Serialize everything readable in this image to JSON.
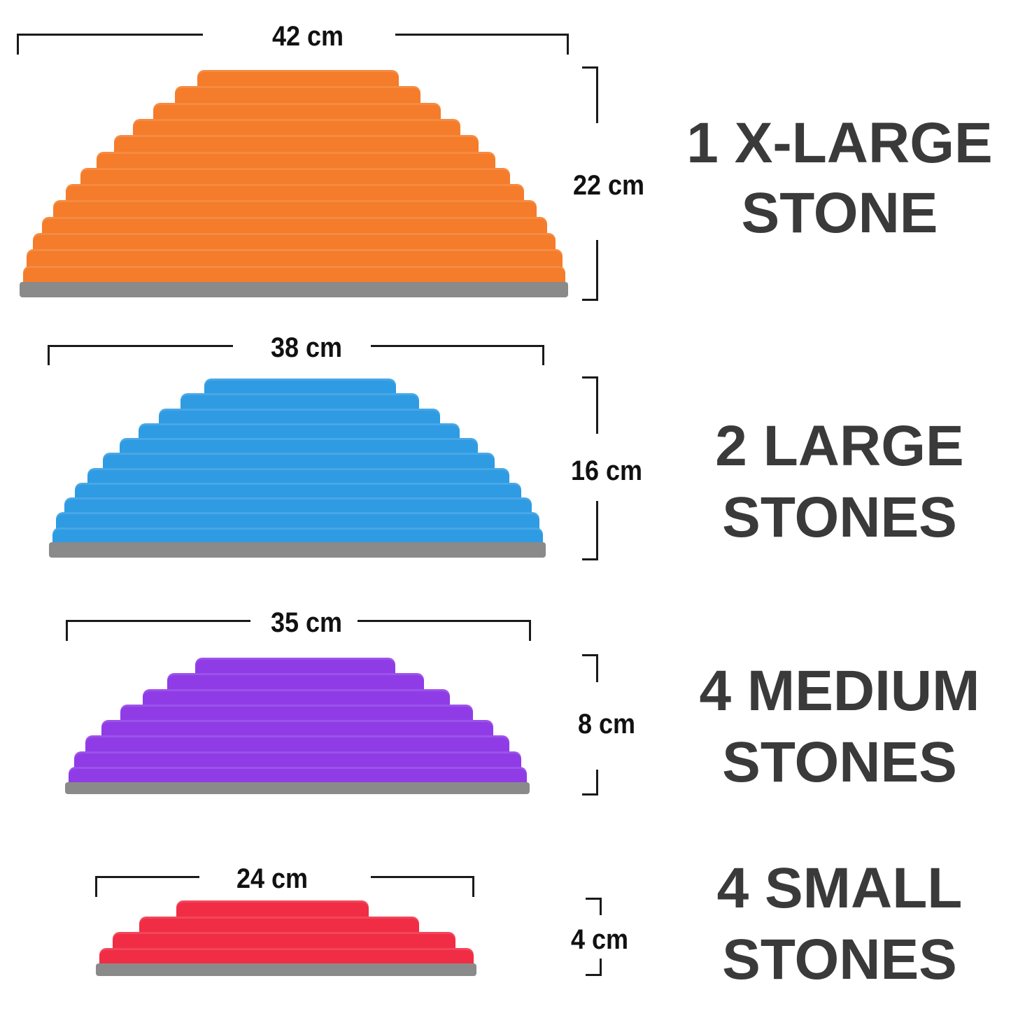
{
  "colors": {
    "base": "#8a8a8a",
    "text": "#3a3a3a",
    "dimension": "#111111"
  },
  "stones": [
    {
      "name": "x-large",
      "color": "#f47c2a",
      "width_label": "42 cm",
      "height_label": "22 cm",
      "title_line1": "1 X-LARGE",
      "title_line2": "STONE"
    },
    {
      "name": "large",
      "color": "#2f9be3",
      "width_label": "38 cm",
      "height_label": "16 cm",
      "title_line1": "2 LARGE",
      "title_line2": "STONES"
    },
    {
      "name": "medium",
      "color": "#8f3ce6",
      "width_label": "35 cm",
      "height_label": "8 cm",
      "title_line1": "4 MEDIUM",
      "title_line2": "STONES"
    },
    {
      "name": "small",
      "color": "#f02d45",
      "width_label": "24 cm",
      "height_label": "4 cm",
      "title_line1": "4 SMALL",
      "title_line2": "STONES"
    }
  ]
}
